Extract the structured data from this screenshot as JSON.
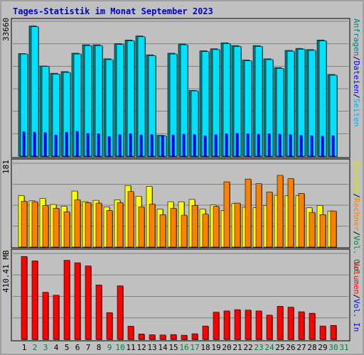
{
  "title": "Tages-Statistik im Monat September 2023",
  "colors": {
    "background": "#c0c0c0",
    "title": "#0000cc",
    "hits": "#008080",
    "files": "#0000ff",
    "pages": "#00e0ff",
    "visits": "#ffff00",
    "sites": "#ff8000",
    "volume": "#ff0000",
    "grid": "#808080",
    "day_weekday": "#000000",
    "day_weekend": "#008040"
  },
  "chart_data": [
    {
      "type": "bar",
      "panel": "top",
      "ymax_label": "33660",
      "ylim": [
        0,
        33660
      ],
      "categories": [
        "1",
        "2",
        "3",
        "4",
        "5",
        "6",
        "7",
        "8",
        "9",
        "10",
        "11",
        "12",
        "13",
        "14",
        "15",
        "16",
        "17",
        "18",
        "19",
        "20",
        "21",
        "22",
        "23",
        "24",
        "25",
        "26",
        "27",
        "28",
        "29",
        "30",
        "31"
      ],
      "series": [
        {
          "name": "Anfragen",
          "values": [
            25600,
            32500,
            22500,
            20700,
            21100,
            25700,
            27800,
            27800,
            24300,
            28100,
            29000,
            30000,
            25300,
            5200,
            25700,
            28000,
            16400,
            26300,
            26800,
            28300,
            27600,
            24000,
            27600,
            24300,
            22100,
            26400,
            26900,
            26600,
            29000,
            20400,
            0
          ]
        },
        {
          "name": "Dateien",
          "values": [
            25500,
            32300,
            22400,
            20500,
            20900,
            25500,
            27600,
            27600,
            24100,
            27900,
            28800,
            29800,
            25100,
            5100,
            25500,
            27800,
            16300,
            26100,
            26600,
            28100,
            27400,
            23800,
            27400,
            24100,
            21900,
            26200,
            26700,
            26400,
            28800,
            20200,
            0
          ]
        },
        {
          "name": "Seiten",
          "values": [
            6100,
            6000,
            5900,
            5300,
            6000,
            6200,
            5700,
            5600,
            4900,
            5400,
            5600,
            5300,
            5400,
            5100,
            5300,
            5500,
            5400,
            5100,
            5400,
            5600,
            5700,
            5600,
            5500,
            5600,
            5500,
            5400,
            5200,
            5100,
            5000,
            5100,
            0
          ]
        }
      ]
    },
    {
      "type": "bar",
      "panel": "middle",
      "ymax_label": "181",
      "ylim": [
        0,
        181
      ],
      "categories": [
        "1",
        "2",
        "3",
        "4",
        "5",
        "6",
        "7",
        "8",
        "9",
        "10",
        "11",
        "12",
        "13",
        "14",
        "15",
        "16",
        "17",
        "18",
        "19",
        "20",
        "21",
        "22",
        "23",
        "24",
        "25",
        "26",
        "27",
        "28",
        "29",
        "30",
        "31"
      ],
      "series": [
        {
          "name": "Besuche",
          "values": [
            111,
            100,
            105,
            92,
            88,
            121,
            98,
            101,
            87,
            102,
            133,
            110,
            131,
            82,
            98,
            98,
            103,
            82,
            91,
            79,
            94,
            86,
            85,
            90,
            112,
            111,
            111,
            85,
            90,
            78,
            0
          ]
        },
        {
          "name": "Rechner",
          "values": [
            99,
            98,
            90,
            84,
            76,
            102,
            96,
            95,
            79,
            96,
            120,
            87,
            93,
            70,
            84,
            69,
            90,
            71,
            88,
            141,
            95,
            147,
            137,
            119,
            155,
            148,
            116,
            75,
            70,
            78,
            0
          ]
        }
      ]
    },
    {
      "type": "bar",
      "panel": "bottom",
      "ymax_label": "410.41 MB",
      "ylim": [
        0,
        410.41
      ],
      "categories": [
        "1",
        "2",
        "3",
        "4",
        "5",
        "6",
        "7",
        "8",
        "9",
        "10",
        "11",
        "12",
        "13",
        "14",
        "15",
        "16",
        "17",
        "18",
        "19",
        "20",
        "21",
        "22",
        "23",
        "24",
        "25",
        "26",
        "27",
        "28",
        "29",
        "30",
        "31"
      ],
      "series": [
        {
          "name": "Volumen",
          "values": [
            396,
            375,
            225,
            211,
            378,
            366,
            351,
            260,
            128,
            256,
            63,
            26,
            22,
            21,
            23,
            20,
            27,
            64,
            130,
            136,
            142,
            140,
            136,
            116,
            158,
            154,
            132,
            125,
            64,
            67,
            0
          ]
        }
      ]
    }
  ],
  "legend": {
    "top": [
      "Anfragen",
      "/",
      "Dateien",
      "/",
      "Seiten"
    ],
    "middle": [
      "Besuche",
      "/",
      "Rechner",
      "/",
      "Vol. Out"
    ],
    "bottom": [
      "Volumen",
      "/",
      "Vol. In"
    ]
  },
  "weekend_days": [
    "2",
    "3",
    "9",
    "10",
    "16",
    "17",
    "23",
    "24",
    "30",
    "31"
  ]
}
